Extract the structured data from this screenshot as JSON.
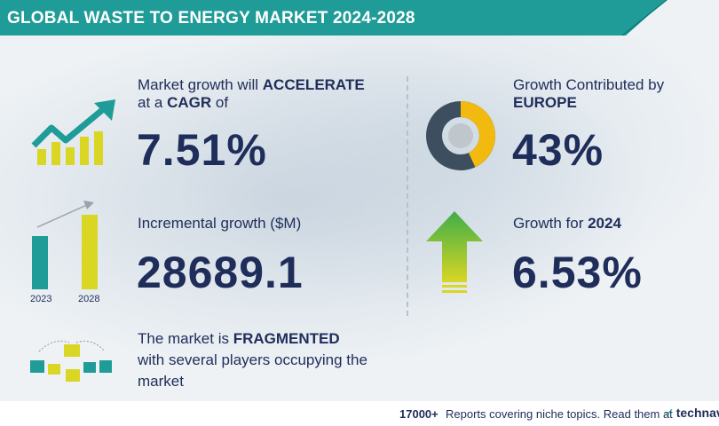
{
  "header": {
    "title": "GLOBAL WASTE TO ENERGY MARKET 2024-2028"
  },
  "colors": {
    "teal": "#1f9c97",
    "navy": "#1f2d5a",
    "yellow": "#d9d624",
    "green": "#3fae49"
  },
  "cagr": {
    "line1_prefix": "Market growth will ",
    "line1_emphasis": "ACCELERATE",
    "line2_prefix": "at a ",
    "line2_emphasis": "CAGR",
    "line2_suffix": " of",
    "value": "7.51%",
    "icon": "trend-up-icon"
  },
  "incremental": {
    "label": "Incremental growth ($M)",
    "value": "28689.1",
    "icon": "bar-comparison-icon",
    "bar_labels": [
      "2023",
      "2028"
    ]
  },
  "fragmented": {
    "line1_prefix": "The market is ",
    "line1_emphasis": "FRAGMENTED",
    "line2": "with several players occupying the",
    "line3": "market",
    "icon": "players-network-icon"
  },
  "europe": {
    "line1": "Growth Contributed by",
    "line2": "EUROPE",
    "value": "43%",
    "icon": "donut-icon",
    "share": 0.43
  },
  "growth_year": {
    "label_prefix": "Growth for ",
    "year": "2024",
    "value": "6.53%",
    "icon": "up-arrow-icon"
  },
  "footer": {
    "count": "17000+",
    "text": "Reports covering niche topics. Read them at",
    "logo": "technav"
  }
}
